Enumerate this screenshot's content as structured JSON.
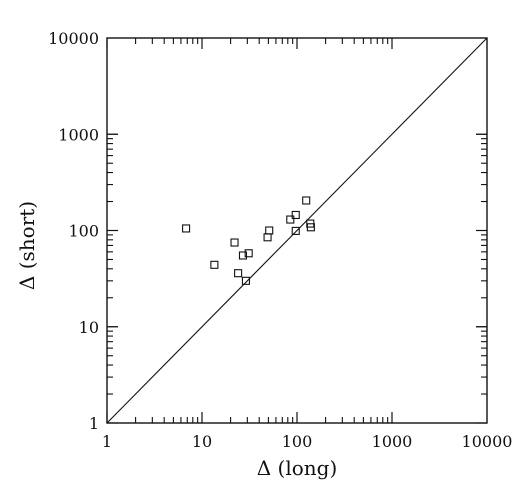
{
  "chart_data": {
    "type": "scatter",
    "xlabel": "Δ (long)",
    "ylabel": "Δ (short)",
    "xscale": "log",
    "yscale": "log",
    "xlim": [
      1,
      10000
    ],
    "ylim": [
      1,
      10000
    ],
    "x_ticks": [
      "1",
      "10",
      "100",
      "1000",
      "10000"
    ],
    "y_ticks": [
      "1",
      "10",
      "100",
      "1000",
      "10000"
    ],
    "reference_line": "y = x",
    "marker": "open-square",
    "grid": false,
    "legend": "none",
    "color": "#111111",
    "points": [
      {
        "x": 6.8,
        "y": 105
      },
      {
        "x": 13.5,
        "y": 44
      },
      {
        "x": 22,
        "y": 75
      },
      {
        "x": 24,
        "y": 36
      },
      {
        "x": 27,
        "y": 55
      },
      {
        "x": 29,
        "y": 30
      },
      {
        "x": 31,
        "y": 58
      },
      {
        "x": 49,
        "y": 85
      },
      {
        "x": 51,
        "y": 100
      },
      {
        "x": 85,
        "y": 130
      },
      {
        "x": 97,
        "y": 145
      },
      {
        "x": 97,
        "y": 99
      },
      {
        "x": 125,
        "y": 205
      },
      {
        "x": 138,
        "y": 118
      },
      {
        "x": 140,
        "y": 108
      }
    ]
  }
}
